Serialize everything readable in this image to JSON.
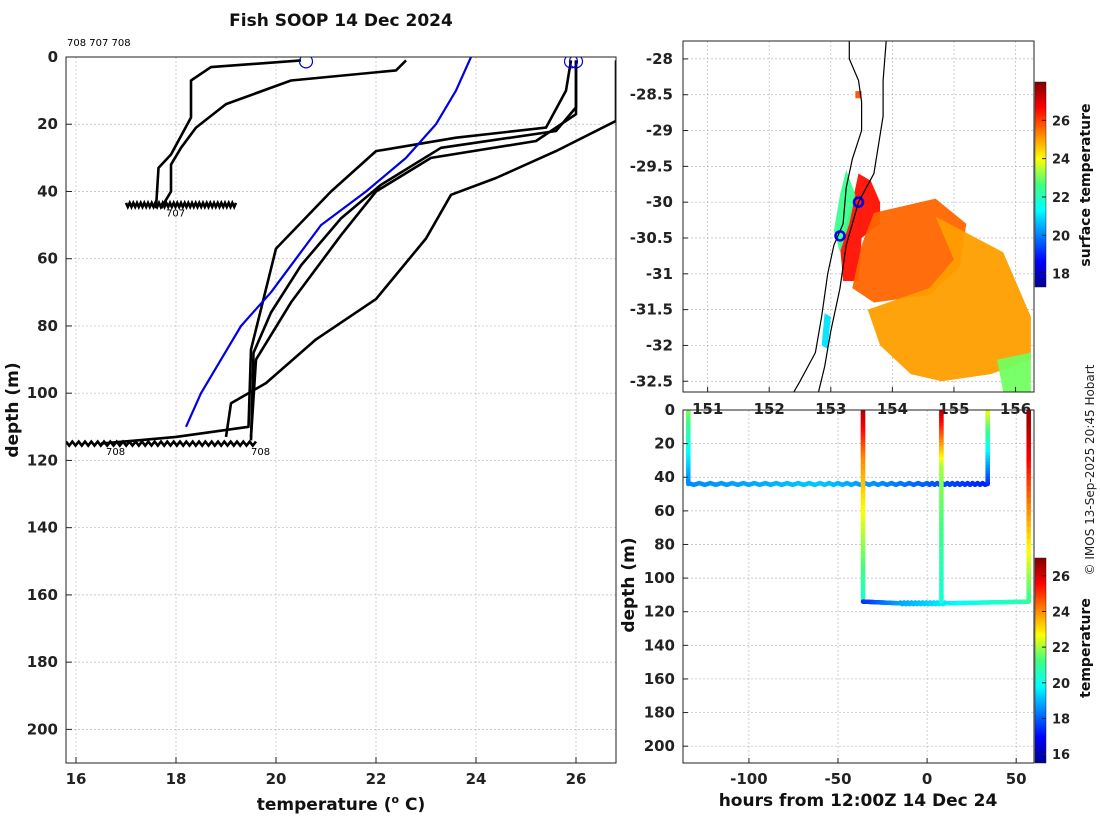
{
  "colors": {
    "profile": "#000000",
    "climatology": "#0000e6",
    "marker": "#0000e6",
    "grid": "#b8b8c8"
  },
  "chart_data": [
    {
      "id": "profiles",
      "type": "line",
      "title": "Fish SOOP 14 Dec 2024",
      "header_ids": "708 707 708",
      "xlabel": "temperature (° C)",
      "xlabel_main": "temperature (",
      "xlabel_sup": "o",
      "xlabel_tail": " C)",
      "ylabel": "depth (m)",
      "xlim": [
        15.8,
        26.8
      ],
      "ylim": [
        210,
        0
      ],
      "xticks": [
        16,
        18,
        20,
        22,
        24,
        26
      ],
      "yticks": [
        0,
        20,
        40,
        60,
        80,
        100,
        120,
        140,
        160,
        180,
        200
      ],
      "annotations": [
        {
          "text": "707",
          "x": 17.8,
          "y": 45
        },
        {
          "text": "708",
          "x": 16.6,
          "y": 116
        },
        {
          "text": "708",
          "x": 19.5,
          "y": 116
        }
      ],
      "series": [
        {
          "name": "profile-1",
          "style": "profile",
          "points": [
            [
              20.5,
              1
            ],
            [
              18.7,
              3
            ],
            [
              18.3,
              7
            ],
            [
              18.3,
              18
            ],
            [
              17.9,
              29
            ],
            [
              17.65,
              33
            ],
            [
              17.6,
              45
            ]
          ]
        },
        {
          "name": "profile-2",
          "style": "profile",
          "points": [
            [
              22.6,
              1
            ],
            [
              22.4,
              4
            ],
            [
              20.3,
              7
            ],
            [
              19.0,
              14
            ],
            [
              18.4,
              21
            ],
            [
              18.1,
              27
            ],
            [
              17.9,
              32
            ],
            [
              17.9,
              40
            ],
            [
              17.7,
              45
            ]
          ]
        },
        {
          "name": "profile-3",
          "style": "profile",
          "points": [
            [
              25.9,
              1
            ],
            [
              25.8,
              10
            ],
            [
              25.4,
              21
            ],
            [
              23.6,
              24
            ],
            [
              22.0,
              28
            ],
            [
              21.1,
              40
            ],
            [
              20.0,
              57
            ],
            [
              19.5,
              87
            ],
            [
              19.45,
              110
            ],
            [
              18.0,
              113
            ],
            [
              16.5,
              115
            ]
          ]
        },
        {
          "name": "profile-4",
          "style": "profile",
          "points": [
            [
              26.0,
              1
            ],
            [
              26.0,
              15
            ],
            [
              25.6,
              22
            ],
            [
              23.3,
              27
            ],
            [
              22.1,
              38
            ],
            [
              21.3,
              48
            ],
            [
              20.5,
              62
            ],
            [
              19.9,
              76
            ],
            [
              19.55,
              88
            ],
            [
              19.5,
              114
            ]
          ]
        },
        {
          "name": "profile-5",
          "style": "profile",
          "points": [
            [
              26.0,
              1
            ],
            [
              26.0,
              17
            ],
            [
              25.2,
              25
            ],
            [
              23.1,
              30
            ],
            [
              22.0,
              40
            ],
            [
              21.3,
              53
            ],
            [
              20.3,
              73
            ],
            [
              19.6,
              90
            ],
            [
              19.5,
              113
            ]
          ]
        },
        {
          "name": "profile-6",
          "style": "profile",
          "points": [
            [
              26.8,
              1
            ],
            [
              26.8,
              19
            ],
            [
              25.6,
              28
            ],
            [
              24.4,
              36
            ],
            [
              23.5,
              41
            ],
            [
              23.0,
              54
            ],
            [
              22.0,
              72
            ],
            [
              20.8,
              84
            ],
            [
              19.8,
              97
            ],
            [
              19.1,
              103
            ],
            [
              19.0,
              113
            ]
          ]
        },
        {
          "name": "climatology",
          "style": "climatology",
          "points": [
            [
              23.9,
              0
            ],
            [
              23.6,
              10
            ],
            [
              23.2,
              20
            ],
            [
              22.6,
              30
            ],
            [
              21.8,
              40
            ],
            [
              20.9,
              50
            ],
            [
              20.4,
              60
            ],
            [
              19.9,
              70
            ],
            [
              19.3,
              80
            ],
            [
              18.9,
              90
            ],
            [
              18.5,
              100
            ],
            [
              18.2,
              110
            ]
          ]
        }
      ],
      "surface_markers": [
        [
          20.6,
          1
        ],
        [
          25.9,
          1
        ],
        [
          26.0,
          1
        ]
      ],
      "loiter_bands": [
        {
          "x_from": 17.0,
          "x_to": 19.2,
          "y": 44
        },
        {
          "x_from": 15.8,
          "x_to": 19.6,
          "y": 115
        }
      ]
    },
    {
      "id": "sst-map",
      "type": "heatmap",
      "xticks": [
        151,
        152,
        153,
        154,
        155,
        156
      ],
      "xlim": [
        150.6,
        156.3
      ],
      "ylim": [
        -32.65,
        -27.75
      ],
      "yticks": [
        -28,
        -28.5,
        -29,
        -29.5,
        -30,
        -30.5,
        -31,
        -31.5,
        -32,
        -32.5
      ],
      "yticklabels": [
        "-28",
        "-28.5",
        "-29",
        "-29.5",
        "-30",
        "-30.5",
        "-31",
        "-31.5",
        "-32",
        "-32.5"
      ],
      "markers": [
        [
          153.45,
          -30.0
        ],
        [
          153.15,
          -30.47
        ]
      ],
      "colorbar": {
        "label": "surface temperature",
        "range": [
          17.3,
          28.0
        ],
        "ticks": [
          18,
          20,
          22,
          24,
          26
        ]
      },
      "sst_regions": [
        {
          "temp": 26.5,
          "polygon": [
            [
              153.45,
              -29.6
            ],
            [
              153.65,
              -29.7
            ],
            [
              153.8,
              -30.0
            ],
            [
              153.8,
              -30.3
            ],
            [
              153.5,
              -30.5
            ],
            [
              153.45,
              -31.1
            ],
            [
              153.2,
              -31.1
            ],
            [
              153.15,
              -30.6
            ],
            [
              153.35,
              -30.0
            ]
          ]
        },
        {
          "temp": 25.6,
          "polygon": [
            [
              153.7,
              -30.15
            ],
            [
              154.7,
              -29.95
            ],
            [
              155.2,
              -30.3
            ],
            [
              155.1,
              -30.9
            ],
            [
              154.6,
              -31.3
            ],
            [
              153.7,
              -31.4
            ],
            [
              153.35,
              -31.2
            ],
            [
              153.5,
              -30.6
            ]
          ]
        },
        {
          "temp": 25.0,
          "polygon": [
            [
              154.7,
              -30.2
            ],
            [
              155.8,
              -30.7
            ],
            [
              156.25,
              -31.6
            ],
            [
              156.25,
              -32.2
            ],
            [
              155.6,
              -32.4
            ],
            [
              154.8,
              -32.5
            ],
            [
              154.3,
              -32.4
            ],
            [
              153.8,
              -32.0
            ],
            [
              153.6,
              -31.5
            ],
            [
              154.6,
              -31.2
            ],
            [
              155.0,
              -30.8
            ]
          ]
        },
        {
          "temp": 22.5,
          "polygon": [
            [
              153.25,
              -29.55
            ],
            [
              153.4,
              -29.9
            ],
            [
              153.3,
              -30.3
            ],
            [
              153.15,
              -30.7
            ],
            [
              153.05,
              -30.4
            ],
            [
              153.15,
              -29.9
            ]
          ]
        },
        {
          "temp": 21.0,
          "polygon": [
            [
              152.9,
              -31.55
            ],
            [
              153.0,
              -31.6
            ],
            [
              152.95,
              -32.05
            ],
            [
              152.85,
              -32.0
            ]
          ]
        },
        {
          "temp": 23.0,
          "polygon": [
            [
              155.7,
              -32.2
            ],
            [
              156.25,
              -32.1
            ],
            [
              156.25,
              -32.65
            ],
            [
              155.8,
              -32.65
            ]
          ]
        },
        {
          "temp": 25.8,
          "polygon": [
            [
              153.4,
              -28.45
            ],
            [
              153.5,
              -28.45
            ],
            [
              153.5,
              -28.55
            ],
            [
              153.4,
              -28.55
            ]
          ]
        }
      ],
      "coastline": [
        [
          153.3,
          -27.75
        ],
        [
          153.3,
          -28.0
        ],
        [
          153.45,
          -28.3
        ],
        [
          153.5,
          -28.6
        ],
        [
          153.5,
          -29.0
        ],
        [
          153.35,
          -29.4
        ],
        [
          153.25,
          -29.8
        ],
        [
          153.2,
          -30.3
        ],
        [
          153.05,
          -30.6
        ],
        [
          152.95,
          -31.0
        ],
        [
          152.85,
          -31.6
        ],
        [
          152.75,
          -32.1
        ],
        [
          152.5,
          -32.5
        ],
        [
          152.4,
          -32.65
        ]
      ],
      "track": [
        [
          153.9,
          -27.75
        ],
        [
          153.85,
          -28.3
        ],
        [
          153.85,
          -28.8
        ],
        [
          153.7,
          -29.6
        ],
        [
          153.45,
          -30.0
        ],
        [
          153.25,
          -30.6
        ],
        [
          153.15,
          -31.2
        ],
        [
          153.0,
          -31.8
        ],
        [
          152.9,
          -32.3
        ],
        [
          152.8,
          -32.65
        ]
      ]
    },
    {
      "id": "depth-time",
      "type": "scatter",
      "xlabel": "hours from 12:00Z 14 Dec 24",
      "ylabel": "depth (m)",
      "xlim": [
        -137,
        60
      ],
      "ylim": [
        210,
        0
      ],
      "xticks": [
        -100,
        -50,
        0,
        50
      ],
      "yticks": [
        0,
        20,
        40,
        60,
        80,
        100,
        120,
        140,
        160,
        180,
        200
      ],
      "colorbar": {
        "label": "temperature",
        "range": [
          15.5,
          27.0
        ],
        "ticks": [
          16,
          18,
          20,
          22,
          24,
          26
        ]
      },
      "segments": [
        {
          "name": "descent-A",
          "points": [
            [
              -134,
              0,
              21.8
            ],
            [
              -134,
              44,
              18.5
            ]
          ]
        },
        {
          "name": "loiter-A",
          "points": [
            [
              -134,
              44,
              18.5
            ],
            [
              -60,
              44,
              19.2
            ],
            [
              0,
              44,
              18.0
            ],
            [
              34,
              44,
              17.3
            ]
          ]
        },
        {
          "name": "ascent-A",
          "points": [
            [
              34,
              44,
              17.3
            ],
            [
              34,
              0,
              22.5
            ]
          ]
        },
        {
          "name": "descent-B",
          "points": [
            [
              -36,
              0,
              26.6
            ],
            [
              -36,
              30,
              24.0
            ],
            [
              -36,
              113,
              20.5
            ]
          ]
        },
        {
          "name": "loiter-B",
          "points": [
            [
              -36,
              114,
              17.4
            ],
            [
              -15,
              115,
              18.8
            ],
            [
              10,
              115,
              19.6
            ],
            [
              57,
              114,
              20.8
            ]
          ]
        },
        {
          "name": "descent-C",
          "points": [
            [
              8,
              0,
              26.6
            ],
            [
              8,
              35,
              22.0
            ],
            [
              8,
              114,
              20.3
            ]
          ]
        },
        {
          "name": "ascent-C",
          "points": [
            [
              57,
              114,
              21.0
            ],
            [
              57,
              30,
              25.5
            ],
            [
              57,
              0,
              26.8
            ]
          ]
        }
      ]
    }
  ],
  "credit": "© IMOS 13-Sep-2025 20:45 Hobart"
}
